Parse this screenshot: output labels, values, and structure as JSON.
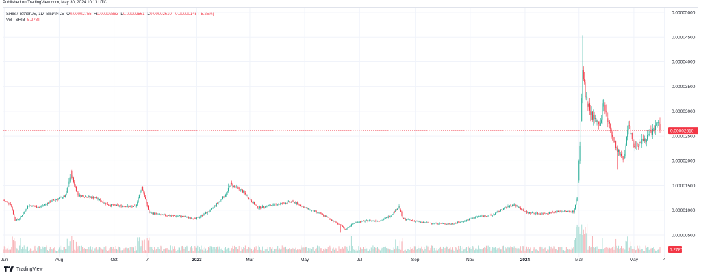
{
  "published": "Published on TradingView.com, May 30, 2024 10:11 UTC",
  "legend": {
    "symbol": "SHIB / TetherUS, 1D, BINANCE",
    "ohlc": [
      {
        "label": "O",
        "value": "0.00002755"
      },
      {
        "label": "H",
        "value": "0.00002883"
      },
      {
        "label": "L",
        "value": "0.00002561"
      },
      {
        "label": "C",
        "value": "0.00002610"
      }
    ],
    "change": "-0.00000145 (-5.26%)",
    "vol_label": "Vol · SHIB",
    "vol_value": "5.278T"
  },
  "footer": {
    "brand": "TradingView"
  },
  "colors": {
    "up": "#22ab94",
    "down": "#f23645",
    "upVol": "#a8dcd4",
    "downVol": "#f7b4b8",
    "grid": "#f0f3fa",
    "price_line": "#f23645"
  },
  "chart_data": {
    "type": "candlestick",
    "ylim": [
      5e-07,
      5e-05
    ],
    "y_ticks": [
      "0.00000500",
      "0.00001000",
      "0.00001500",
      "0.00002000",
      "0.00002500",
      "0.00003000",
      "0.00003500",
      "0.00004000",
      "0.00004500",
      "0.00005000"
    ],
    "x_ticks": [
      "Jun",
      "Aug",
      "Oct",
      "7",
      "2023",
      "Mar",
      "May",
      "Jul",
      "Sep",
      "Nov",
      "2024",
      "Mar",
      "May",
      "4"
    ],
    "x_ticks_bold": [
      "2023",
      "2024"
    ],
    "last_price": "0.00002610",
    "last_volume": "5.278T",
    "price_path": [
      [
        "2022-05-31",
        1.2e-05
      ],
      [
        "2022-06-08",
        1.13e-05
      ],
      [
        "2022-06-13",
        8e-06
      ],
      [
        "2022-06-18",
        8.3e-06
      ],
      [
        "2022-06-28",
        1.1e-05
      ],
      [
        "2022-07-10",
        1.06e-05
      ],
      [
        "2022-07-25",
        1.2e-05
      ],
      [
        "2022-08-08",
        1.28e-05
      ],
      [
        "2022-08-14",
        1.75e-05
      ],
      [
        "2022-08-22",
        1.3e-05
      ],
      [
        "2022-09-10",
        1.25e-05
      ],
      [
        "2022-09-25",
        1.11e-05
      ],
      [
        "2022-10-15",
        1.08e-05
      ],
      [
        "2022-10-25",
        1.07e-05
      ],
      [
        "2022-11-01",
        1.48e-05
      ],
      [
        "2022-11-09",
        9.5e-06
      ],
      [
        "2022-11-25",
        9e-06
      ],
      [
        "2022-12-15",
        8.8e-06
      ],
      [
        "2022-12-31",
        8.3e-06
      ],
      [
        "2023-01-15",
        9.8e-06
      ],
      [
        "2023-02-03",
        1.33e-05
      ],
      [
        "2023-02-07",
        1.53e-05
      ],
      [
        "2023-02-20",
        1.4e-05
      ],
      [
        "2023-03-10",
        1.05e-05
      ],
      [
        "2023-03-25",
        1.1e-05
      ],
      [
        "2023-04-18",
        1.18e-05
      ],
      [
        "2023-05-01",
        1.05e-05
      ],
      [
        "2023-05-20",
        9.2e-06
      ],
      [
        "2023-06-10",
        7e-06
      ],
      [
        "2023-06-15",
        6e-06
      ],
      [
        "2023-06-25",
        7.5e-06
      ],
      [
        "2023-07-10",
        7.9e-06
      ],
      [
        "2023-07-25",
        7.9e-06
      ],
      [
        "2023-08-05",
        9e-06
      ],
      [
        "2023-08-14",
        1.08e-05
      ],
      [
        "2023-08-18",
        8.3e-06
      ],
      [
        "2023-09-10",
        7.5e-06
      ],
      [
        "2023-10-10",
        7.2e-06
      ],
      [
        "2023-10-25",
        7.8e-06
      ],
      [
        "2023-11-10",
        8.8e-06
      ],
      [
        "2023-11-25",
        9e-06
      ],
      [
        "2023-12-10",
        1.05e-05
      ],
      [
        "2023-12-20",
        1.12e-05
      ],
      [
        "2024-01-03",
        9.5e-06
      ],
      [
        "2024-01-20",
        9.3e-06
      ],
      [
        "2024-02-10",
        9.8e-06
      ],
      [
        "2024-02-24",
        9.7e-06
      ],
      [
        "2024-02-28",
        1.25e-05
      ],
      [
        "2024-03-02",
        2.3e-05
      ],
      [
        "2024-03-05",
        3.8e-05
      ],
      [
        "2024-03-08",
        3.35e-05
      ],
      [
        "2024-03-12",
        3.1e-05
      ],
      [
        "2024-03-18",
        2.8e-05
      ],
      [
        "2024-03-25",
        2.75e-05
      ],
      [
        "2024-03-28",
        3.2e-05
      ],
      [
        "2024-04-03",
        2.75e-05
      ],
      [
        "2024-04-13",
        2.2e-05
      ],
      [
        "2024-04-20",
        2.05e-05
      ],
      [
        "2024-04-25",
        2.7e-05
      ],
      [
        "2024-05-01",
        2.3e-05
      ],
      [
        "2024-05-15",
        2.45e-05
      ],
      [
        "2024-05-25",
        2.68e-05
      ],
      [
        "2024-05-29",
        2.76e-05
      ],
      [
        "2024-05-30",
        2.61e-05
      ]
    ],
    "notable_extremes": [
      [
        "2024-03-05",
        4.54e-05,
        "high"
      ],
      [
        "2022-08-14",
        1.76e-05,
        "high"
      ],
      [
        "2022-11-01",
        1.5e-05,
        "high"
      ],
      [
        "2023-02-05",
        1.54e-05,
        "high"
      ],
      [
        "2023-08-14",
        1.12e-05,
        "high"
      ],
      [
        "2023-06-10",
        5.5e-06,
        "low"
      ],
      [
        "2024-04-13",
        1.82e-05,
        "low"
      ]
    ]
  }
}
